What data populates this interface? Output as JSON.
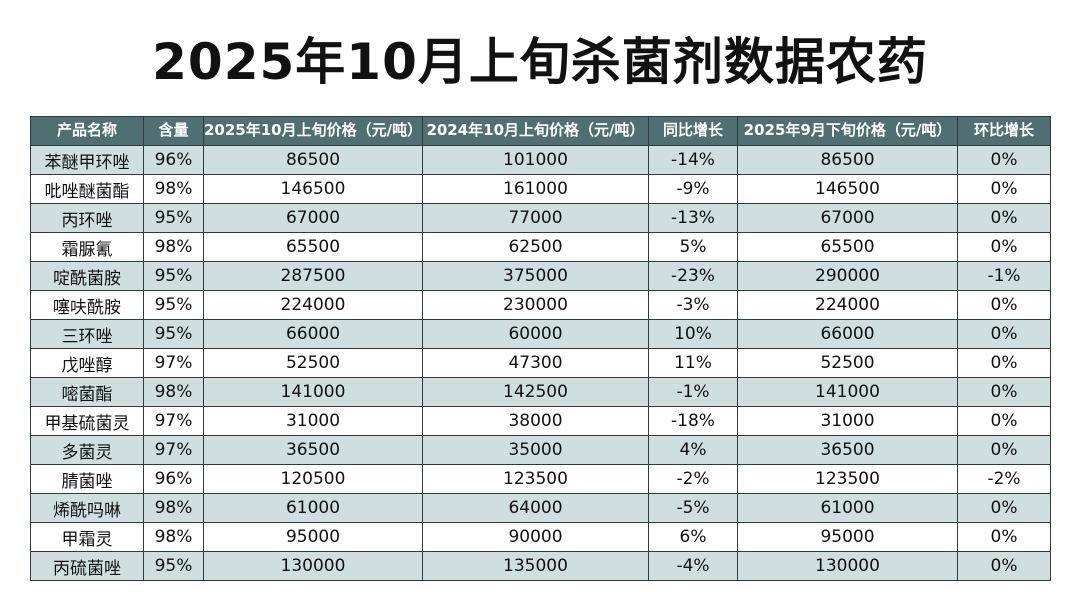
{
  "title": "2025年10月上旬杀菌剂数据农药",
  "columns": [
    "产品名称",
    "含量",
    "2025年10月上旬价格（元/吨）",
    "2024年10月上旬价格（元/吨）",
    "同比增长",
    "2025年9月下旬价格（元/吨）",
    "环比增长"
  ],
  "rows": [
    {
      "name": "苯醚甲环唑",
      "content": "96%",
      "price_2025_oct": "86500",
      "price_2024_oct": "101000",
      "yoy": "-14%",
      "price_2025_sep": "86500",
      "mom": "0%"
    },
    {
      "name": "吡唑醚菌酯",
      "content": "98%",
      "price_2025_oct": "146500",
      "price_2024_oct": "161000",
      "yoy": "-9%",
      "price_2025_sep": "146500",
      "mom": "0%"
    },
    {
      "name": "丙环唑",
      "content": "95%",
      "price_2025_oct": "67000",
      "price_2024_oct": "77000",
      "yoy": "-13%",
      "price_2025_sep": "67000",
      "mom": "0%"
    },
    {
      "name": "霜脲氰",
      "content": "98%",
      "price_2025_oct": "65500",
      "price_2024_oct": "62500",
      "yoy": "5%",
      "price_2025_sep": "65500",
      "mom": "0%"
    },
    {
      "name": "啶酰菌胺",
      "content": "95%",
      "price_2025_oct": "287500",
      "price_2024_oct": "375000",
      "yoy": "-23%",
      "price_2025_sep": "290000",
      "mom": "-1%"
    },
    {
      "name": "噻呋酰胺",
      "content": "95%",
      "price_2025_oct": "224000",
      "price_2024_oct": "230000",
      "yoy": "-3%",
      "price_2025_sep": "224000",
      "mom": "0%"
    },
    {
      "name": "三环唑",
      "content": "95%",
      "price_2025_oct": "66000",
      "price_2024_oct": "60000",
      "yoy": "10%",
      "price_2025_sep": "66000",
      "mom": "0%"
    },
    {
      "name": "戊唑醇",
      "content": "97%",
      "price_2025_oct": "52500",
      "price_2024_oct": "47300",
      "yoy": "11%",
      "price_2025_sep": "52500",
      "mom": "0%"
    },
    {
      "name": "嘧菌酯",
      "content": "98%",
      "price_2025_oct": "141000",
      "price_2024_oct": "142500",
      "yoy": "-1%",
      "price_2025_sep": "141000",
      "mom": "0%"
    },
    {
      "name": "甲基硫菌灵",
      "content": "97%",
      "price_2025_oct": "31000",
      "price_2024_oct": "38000",
      "yoy": "-18%",
      "price_2025_sep": "31000",
      "mom": "0%"
    },
    {
      "name": "多菌灵",
      "content": "97%",
      "price_2025_oct": "36500",
      "price_2024_oct": "35000",
      "yoy": "4%",
      "price_2025_sep": "36500",
      "mom": "0%"
    },
    {
      "name": "腈菌唑",
      "content": "96%",
      "price_2025_oct": "120500",
      "price_2024_oct": "123500",
      "yoy": "-2%",
      "price_2025_sep": "123500",
      "mom": "-2%"
    },
    {
      "name": "烯酰吗啉",
      "content": "98%",
      "price_2025_oct": "61000",
      "price_2024_oct": "64000",
      "yoy": "-5%",
      "price_2025_sep": "61000",
      "mom": "0%"
    },
    {
      "name": "甲霜灵",
      "content": "98%",
      "price_2025_oct": "95000",
      "price_2024_oct": "90000",
      "yoy": "6%",
      "price_2025_sep": "95000",
      "mom": "0%"
    },
    {
      "name": "丙硫菌唑",
      "content": "95%",
      "price_2025_oct": "130000",
      "price_2024_oct": "135000",
      "yoy": "-4%",
      "price_2025_sep": "130000",
      "mom": "0%"
    }
  ]
}
